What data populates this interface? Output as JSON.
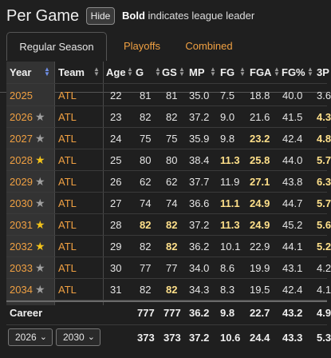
{
  "header": {
    "title": "Per Game",
    "hide_label": "Hide",
    "note_bold": "Bold",
    "note_rest": " indicates league leader"
  },
  "tabs": [
    {
      "label": "Regular Season",
      "active": true
    },
    {
      "label": "Playoffs",
      "active": false
    },
    {
      "label": "Combined",
      "active": false
    }
  ],
  "columns": [
    "Year",
    "Team",
    "Age",
    "G",
    "GS",
    "MP",
    "FG",
    "FGA",
    "FG%",
    "3P"
  ],
  "rows": [
    {
      "year": "2025",
      "star": "",
      "team": "ATL",
      "age": "22",
      "g": "81",
      "gs": "81",
      "mp": "35.0",
      "fg": "7.5",
      "fga": "18.8",
      "fgp": "40.0",
      "tp": "3.6",
      "lead": []
    },
    {
      "year": "2026",
      "star": "grey",
      "team": "ATL",
      "age": "23",
      "g": "82",
      "gs": "82",
      "mp": "37.2",
      "fg": "9.0",
      "fga": "21.6",
      "fgp": "41.5",
      "tp": "4.3",
      "lead": [
        "tp"
      ]
    },
    {
      "year": "2027",
      "star": "grey",
      "team": "ATL",
      "age": "24",
      "g": "75",
      "gs": "75",
      "mp": "35.9",
      "fg": "9.8",
      "fga": "23.2",
      "fgp": "42.4",
      "tp": "4.8",
      "lead": [
        "fga",
        "tp"
      ]
    },
    {
      "year": "2028",
      "star": "gold",
      "team": "ATL",
      "age": "25",
      "g": "80",
      "gs": "80",
      "mp": "38.4",
      "fg": "11.3",
      "fga": "25.8",
      "fgp": "44.0",
      "tp": "5.7",
      "lead": [
        "fg",
        "fga",
        "tp"
      ]
    },
    {
      "year": "2029",
      "star": "grey",
      "team": "ATL",
      "age": "26",
      "g": "62",
      "gs": "62",
      "mp": "37.7",
      "fg": "11.9",
      "fga": "27.1",
      "fgp": "43.8",
      "tp": "6.3",
      "lead": [
        "fga",
        "tp"
      ]
    },
    {
      "year": "2030",
      "star": "grey",
      "team": "ATL",
      "age": "27",
      "g": "74",
      "gs": "74",
      "mp": "36.6",
      "fg": "11.1",
      "fga": "24.9",
      "fgp": "44.7",
      "tp": "5.7",
      "lead": [
        "fg",
        "fga",
        "tp"
      ]
    },
    {
      "year": "2031",
      "star": "gold",
      "team": "ATL",
      "age": "28",
      "g": "82",
      "gs": "82",
      "mp": "37.2",
      "fg": "11.3",
      "fga": "24.9",
      "fgp": "45.2",
      "tp": "5.6",
      "lead": [
        "g",
        "gs",
        "fg",
        "fga",
        "tp"
      ]
    },
    {
      "year": "2032",
      "star": "gold",
      "team": "ATL",
      "age": "29",
      "g": "82",
      "gs": "82",
      "mp": "36.2",
      "fg": "10.1",
      "fga": "22.9",
      "fgp": "44.1",
      "tp": "5.2",
      "lead": [
        "gs",
        "tp"
      ]
    },
    {
      "year": "2033",
      "star": "grey",
      "team": "ATL",
      "age": "30",
      "g": "77",
      "gs": "77",
      "mp": "34.0",
      "fg": "8.6",
      "fga": "19.9",
      "fgp": "43.1",
      "tp": "4.2",
      "lead": []
    },
    {
      "year": "2034",
      "star": "grey",
      "team": "ATL",
      "age": "31",
      "g": "82",
      "gs": "82",
      "mp": "34.3",
      "fg": "8.3",
      "fga": "19.5",
      "fgp": "42.4",
      "tp": "4.1",
      "lead": [
        "gs"
      ]
    }
  ],
  "career": {
    "label": "Career",
    "g": "777",
    "gs": "777",
    "mp": "36.2",
    "fg": "9.8",
    "fga": "22.7",
    "fgp": "43.2",
    "tp": "4.9"
  },
  "range": {
    "from": "2026",
    "to": "2030",
    "g": "373",
    "gs": "373",
    "mp": "37.2",
    "fg": "10.6",
    "fga": "24.4",
    "fgp": "43.3",
    "tp": "5.3"
  },
  "colors": {
    "accent": "#f0a042",
    "leader": "#ffe08a",
    "star_gold": "#f2c21a",
    "star_grey": "#a0a0a0",
    "sort_active": "#6f8fe8"
  },
  "icons": {
    "star": "star-icon",
    "sort": "sort-arrows-icon",
    "chevron": "chevron-down-icon"
  }
}
